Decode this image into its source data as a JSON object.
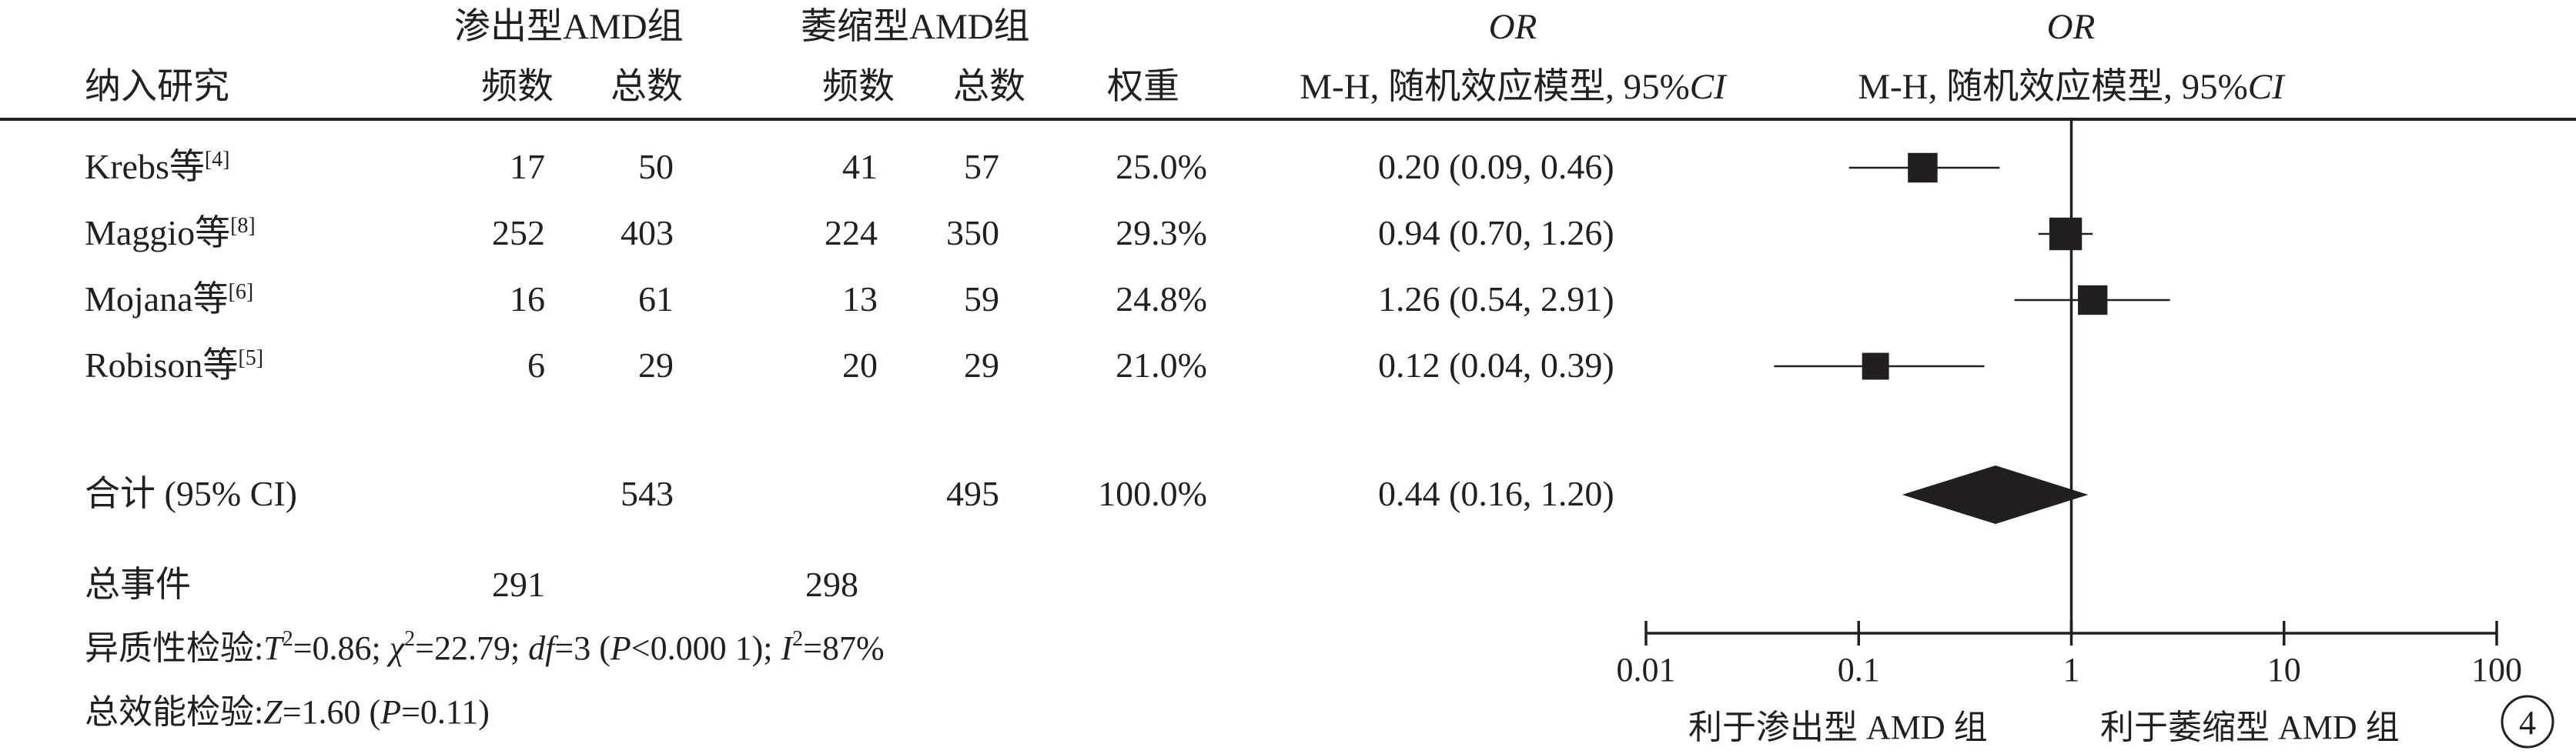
{
  "header": {
    "group1": "渗出型AMD组",
    "group2": "萎缩型AMD组",
    "or_label_left": "OR",
    "or_label_right": "OR",
    "col_study": "纳入研究",
    "col_freq1": "频数",
    "col_total1": "总数",
    "col_freq2": "频数",
    "col_total2": "总数",
    "col_weight": "权重",
    "or_method_left_prefix": "M-H, 随机效应模型, 95%",
    "or_method_left_ci": "CI",
    "or_method_right_prefix": "M-H, 随机效应模型, 95%",
    "or_method_right_ci": "CI"
  },
  "studies": [
    {
      "name": "Krebs等",
      "ref": "[4]",
      "freq1": "17",
      "total1": "50",
      "freq2": "41",
      "total2": "57",
      "weight": "25.0%",
      "or_text": "0.20 (0.09, 0.46)",
      "or": 0.2,
      "ci_low": 0.09,
      "ci_high": 0.46
    },
    {
      "name": "Maggio等",
      "ref": "[8]",
      "freq1": "252",
      "total1": "403",
      "freq2": "224",
      "total2": "350",
      "weight": "29.3%",
      "or_text": "0.94 (0.70, 1.26)",
      "or": 0.94,
      "ci_low": 0.7,
      "ci_high": 1.26
    },
    {
      "name": "Mojana等",
      "ref": "[6]",
      "freq1": "16",
      "total1": "61",
      "freq2": "13",
      "total2": "59",
      "weight": "24.8%",
      "or_text": "1.26 (0.54, 2.91)",
      "or": 1.26,
      "ci_low": 0.54,
      "ci_high": 2.91
    },
    {
      "name": "Robison等",
      "ref": "[5]",
      "freq1": "6",
      "total1": "29",
      "freq2": "20",
      "total2": "29",
      "weight": "21.0%",
      "or_text": "0.12 (0.04, 0.39)",
      "or": 0.12,
      "ci_low": 0.04,
      "ci_high": 0.39
    }
  ],
  "total": {
    "label": "合计 (95% CI)",
    "total1": "543",
    "total2": "495",
    "weight": "100.0%",
    "or_text": "0.44 (0.16, 1.20)",
    "or": 0.44,
    "ci_low": 0.16,
    "ci_high": 1.2
  },
  "events": {
    "label": "总事件",
    "group1": "291",
    "group2": "298"
  },
  "heterogeneity": {
    "prefix": "异质性检验:",
    "t2_sym": "T",
    "t2_sup": "2",
    "t2_val": "=0.86; ",
    "chi_sym": "χ",
    "chi_sup": "2",
    "chi_val": "=22.79; ",
    "df_sym": "df",
    "df_val": "=3 (",
    "p_sym": "P",
    "p_val": "<0.000 1); ",
    "i2_sym": "I",
    "i2_sup": "2",
    "i2_val": "=87%"
  },
  "overall_effect": {
    "prefix": "总效能检验:",
    "z_sym": "Z",
    "z_val": "=1.60 (",
    "p_sym": "P",
    "p_val": "=0.11)"
  },
  "axis": {
    "ticks": [
      0.01,
      0.1,
      1,
      10,
      100
    ],
    "tick_labels": [
      "0.01",
      "0.1",
      "1",
      "10",
      "100"
    ],
    "favours_left": "利于渗出型 AMD 组",
    "favours_right": "利于萎缩型 AMD 组",
    "panel_label": "4"
  },
  "chart_data": {
    "type": "forest",
    "scale": "log",
    "xlim": [
      0.01,
      100
    ],
    "reference_line": 1,
    "series": [
      {
        "name": "Krebs等",
        "or": 0.2,
        "ci": [
          0.09,
          0.46
        ],
        "weight": 25.0
      },
      {
        "name": "Maggio等",
        "or": 0.94,
        "ci": [
          0.7,
          1.26
        ],
        "weight": 29.3
      },
      {
        "name": "Mojana等",
        "or": 1.26,
        "ci": [
          0.54,
          2.91
        ],
        "weight": 24.8
      },
      {
        "name": "Robison等",
        "or": 0.12,
        "ci": [
          0.04,
          0.39
        ],
        "weight": 21.0
      }
    ],
    "pooled": {
      "or": 0.44,
      "ci": [
        0.16,
        1.2
      ],
      "weight": 100.0
    }
  }
}
